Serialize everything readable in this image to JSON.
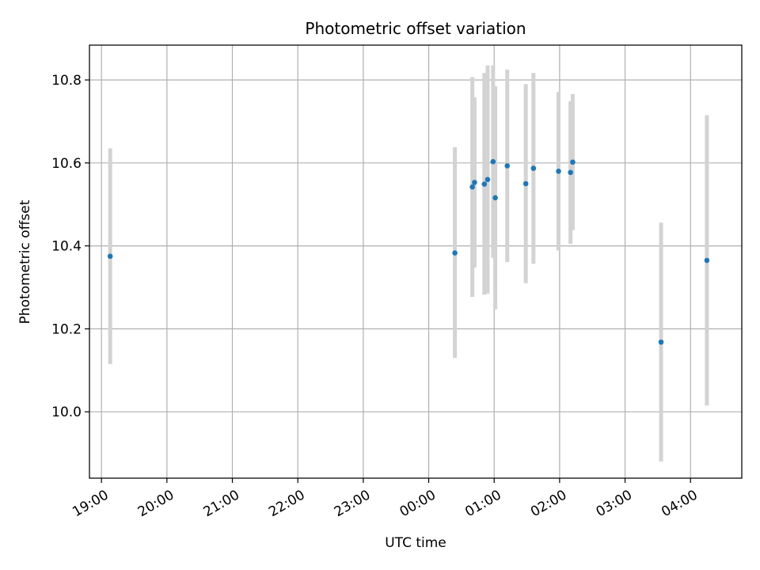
{
  "chart_data": {
    "type": "scatter",
    "title": "Photometric offset variation",
    "xlabel": "UTC time",
    "ylabel": "Photometric offset",
    "x_ticks": [
      "19:00",
      "20:00",
      "21:00",
      "22:00",
      "23:00",
      "00:00",
      "01:00",
      "02:00",
      "03:00",
      "04:00"
    ],
    "y_ticks": [
      "10.0",
      "10.2",
      "10.4",
      "10.6",
      "10.8"
    ],
    "y_tick_values": [
      10.0,
      10.2,
      10.4,
      10.6,
      10.8
    ],
    "xlim": [
      "18:49",
      "28:47"
    ],
    "ylim": [
      9.84,
      10.884
    ],
    "grid": true,
    "point_color": "#1f77b4",
    "errorbar_color": "#d3d3d3",
    "points": [
      {
        "x": "19:08",
        "y": 10.375,
        "err_low": 10.115,
        "err_high": 10.635
      },
      {
        "x": "00:24",
        "y": 10.383,
        "err_low": 10.13,
        "err_high": 10.638
      },
      {
        "x": "00:40",
        "y": 10.542,
        "err_low": 10.277,
        "err_high": 10.807
      },
      {
        "x": "00:42",
        "y": 10.553,
        "err_low": 10.348,
        "err_high": 10.758
      },
      {
        "x": "00:51",
        "y": 10.549,
        "err_low": 10.282,
        "err_high": 10.817
      },
      {
        "x": "00:54",
        "y": 10.56,
        "err_low": 10.285,
        "err_high": 10.835
      },
      {
        "x": "00:59",
        "y": 10.603,
        "err_low": 10.371,
        "err_high": 10.835
      },
      {
        "x": "01:01",
        "y": 10.516,
        "err_low": 10.247,
        "err_high": 10.785
      },
      {
        "x": "01:12",
        "y": 10.593,
        "err_low": 10.361,
        "err_high": 10.825
      },
      {
        "x": "01:29",
        "y": 10.55,
        "err_low": 10.31,
        "err_high": 10.79
      },
      {
        "x": "01:36",
        "y": 10.587,
        "err_low": 10.357,
        "err_high": 10.817
      },
      {
        "x": "01:59",
        "y": 10.58,
        "err_low": 10.389,
        "err_high": 10.771
      },
      {
        "x": "02:10",
        "y": 10.577,
        "err_low": 10.405,
        "err_high": 10.749
      },
      {
        "x": "02:12",
        "y": 10.602,
        "err_low": 10.438,
        "err_high": 10.766
      },
      {
        "x": "03:33",
        "y": 10.168,
        "err_low": 9.88,
        "err_high": 10.456
      },
      {
        "x": "04:15",
        "y": 10.365,
        "err_low": 10.015,
        "err_high": 10.715
      }
    ]
  }
}
